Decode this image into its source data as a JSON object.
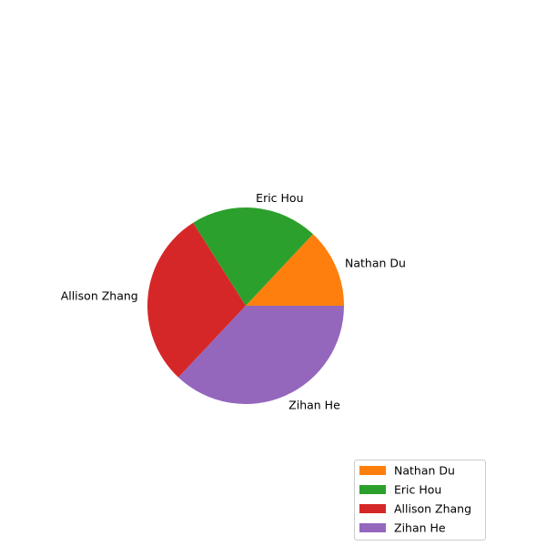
{
  "chart_data": {
    "type": "pie",
    "categories": [
      "Nathan Du",
      "Eric Hou",
      "Allison Zhang",
      "Zihan He"
    ],
    "values": [
      13,
      21,
      29,
      37
    ],
    "colors": [
      "#ff7f0e",
      "#2ca02c",
      "#d62728",
      "#9467bd"
    ],
    "start_angle_deg": 0,
    "direction": "counterclockwise",
    "legend": {
      "position": "bottom-right",
      "entries": [
        "Nathan Du",
        "Eric Hou",
        "Allison Zhang",
        "Zihan He"
      ]
    }
  }
}
